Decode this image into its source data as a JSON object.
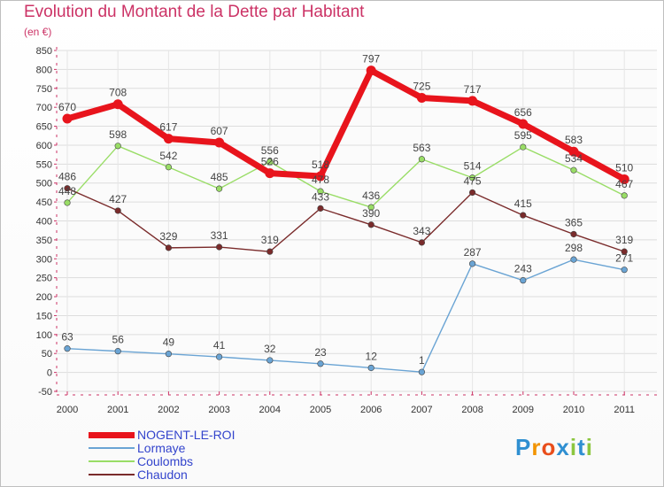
{
  "title": "Evolution du Montant de la Dette par Habitant",
  "subtitle": "(en €)",
  "logo": {
    "letters": [
      "P",
      "r",
      "o",
      "x",
      "i",
      "t",
      "i"
    ],
    "colors": [
      "#2f8fd1",
      "#f29400",
      "#e94e1b",
      "#2f8fd1",
      "#8cc63f",
      "#2f8fd1",
      "#8cc63f"
    ]
  },
  "chart_data": {
    "type": "line",
    "categories": [
      "2000",
      "2001",
      "2002",
      "2003",
      "2004",
      "2005",
      "2006",
      "2007",
      "2008",
      "2009",
      "2010",
      "2011"
    ],
    "ylim": [
      -50,
      850
    ],
    "yticks": [
      "-50",
      "0",
      "50",
      "100",
      "150",
      "200",
      "250",
      "300",
      "350",
      "400",
      "450",
      "500",
      "550",
      "600",
      "650",
      "700",
      "750",
      "800",
      "850"
    ],
    "grid": true,
    "legend_position": "bottom-left",
    "series": [
      {
        "name": "NOGENT-LE-ROI",
        "color": "#e8141c",
        "values": [
          670,
          708,
          617,
          607,
          526,
          518,
          797,
          725,
          717,
          656,
          583,
          510
        ],
        "labels": [
          "670",
          "708",
          "617",
          "607",
          "526",
          "518",
          "797",
          "725",
          "717",
          "656",
          "583",
          "510"
        ]
      },
      {
        "name": "Lormaye",
        "color": "#6aa4d4",
        "values": [
          63,
          56,
          49,
          41,
          32,
          23,
          12,
          1,
          287,
          243,
          298,
          271
        ],
        "labels": [
          "63",
          "56",
          "49",
          "41",
          "32",
          "23",
          "12",
          "1",
          "287",
          "243",
          "298",
          "271"
        ]
      },
      {
        "name": "Coulombs",
        "color": "#99dd66",
        "values": [
          448,
          598,
          542,
          485,
          556,
          478,
          436,
          563,
          514,
          595,
          534,
          467
        ],
        "labels": [
          "448",
          "598",
          "542",
          "485",
          "556",
          "478",
          "436",
          "563",
          "514",
          "595",
          "534",
          "467"
        ]
      },
      {
        "name": "Chaudon",
        "color": "#7a2b2b",
        "values": [
          486,
          427,
          329,
          331,
          319,
          433,
          390,
          343,
          475,
          415,
          365,
          319
        ],
        "labels": [
          "486",
          "427",
          "329",
          "331",
          "319",
          "433",
          "390",
          "343",
          "475",
          "415",
          "365",
          "319"
        ]
      }
    ]
  }
}
